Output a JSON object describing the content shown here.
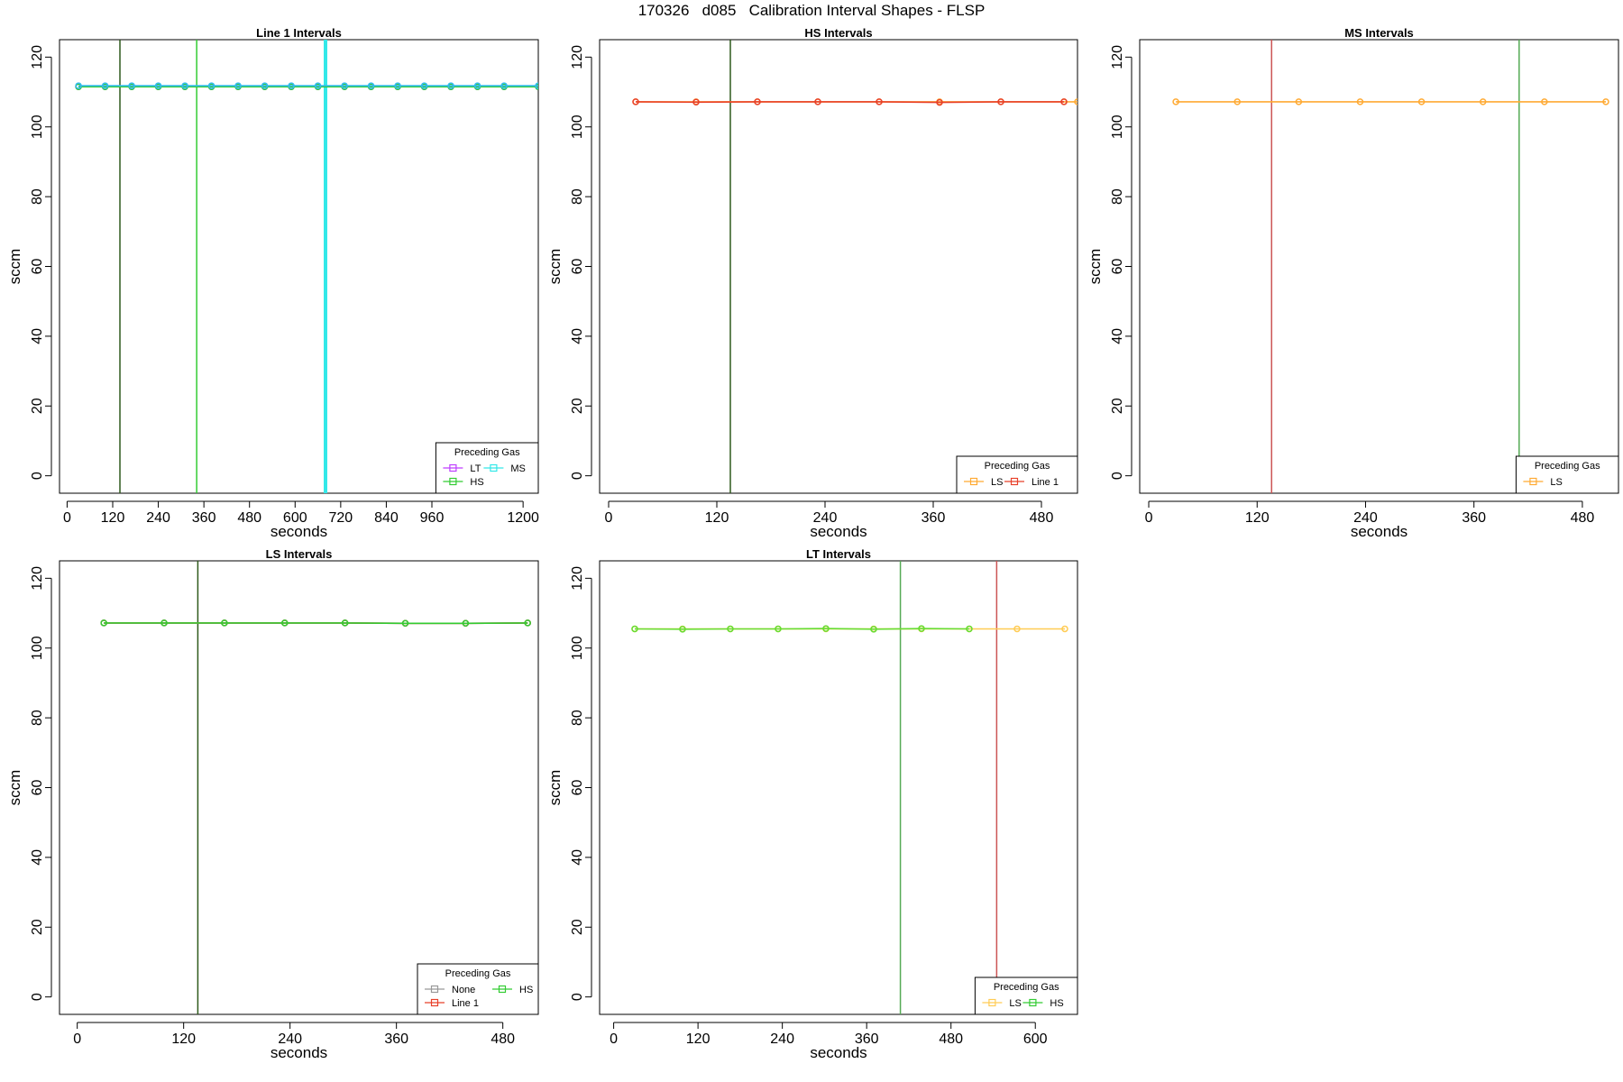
{
  "figure": {
    "title": "170326   d085   Calibration Interval Shapes - FLSP"
  },
  "chart_data": [
    {
      "type": "line",
      "title": "Line 1 Intervals",
      "xlabel": "seconds",
      "ylabel": "sccm",
      "xlim": [
        -20,
        1240
      ],
      "ylim": [
        -5,
        125
      ],
      "xticks": [
        0,
        120,
        240,
        360,
        480,
        600,
        720,
        840,
        960,
        1200
      ],
      "yticks": [
        0,
        20,
        40,
        60,
        80,
        100,
        120
      ],
      "grid": false,
      "legend": {
        "title": "Preceding Gas",
        "placement": "bottom-right",
        "entries": [
          {
            "label": "LT",
            "color": "#bf3fff"
          },
          {
            "label": "MS",
            "color": "#33e8e8"
          },
          {
            "label": "HS",
            "color": "#33cc33"
          }
        ]
      },
      "vlines": [
        {
          "x": 139,
          "color": "#2e5a1c",
          "width": 1.5
        },
        {
          "x": 341,
          "color": "#33cc33",
          "width": 1.5
        },
        {
          "x": 680,
          "color": "#33e8e8",
          "width": 4
        }
      ],
      "series": [
        {
          "name": "LT",
          "color": "#bf3fff",
          "marker": true,
          "x": [
            30,
            100,
            170,
            240,
            310,
            380,
            450,
            520,
            590,
            660,
            730,
            800,
            870,
            940,
            1010,
            1080,
            1150,
            1240
          ],
          "y": [
            111.5,
            111.5,
            111.5,
            111.5,
            111.5,
            111.5,
            111.5,
            111.5,
            111.5,
            111.5,
            111.5,
            111.5,
            111.5,
            111.5,
            111.5,
            111.5,
            111.5,
            111.5
          ]
        },
        {
          "name": "HS",
          "color": "#33cc33",
          "marker": true,
          "x": [
            30,
            100,
            170,
            240,
            310,
            380,
            450,
            520,
            590,
            660,
            730,
            800,
            870,
            940,
            1010,
            1080,
            1150,
            1240
          ],
          "y": [
            111.5,
            111.5,
            111.5,
            111.5,
            111.5,
            111.5,
            111.5,
            111.5,
            111.5,
            111.5,
            111.5,
            111.5,
            111.5,
            111.5,
            111.5,
            111.5,
            111.5,
            111.5
          ]
        },
        {
          "name": "MS",
          "color": "#33bbee",
          "marker": true,
          "x": [
            30,
            100,
            170,
            240,
            310,
            380,
            450,
            520,
            590,
            660,
            730,
            800,
            870,
            940,
            1010,
            1080,
            1150,
            1240
          ],
          "y": [
            111.8,
            111.8,
            111.8,
            111.8,
            111.8,
            111.8,
            111.8,
            111.8,
            111.8,
            111.8,
            111.8,
            111.8,
            111.8,
            111.8,
            111.8,
            111.8,
            111.8,
            111.8
          ]
        }
      ]
    },
    {
      "type": "line",
      "title": "HS Intervals",
      "xlabel": "seconds",
      "ylabel": "sccm",
      "xlim": [
        -10,
        520
      ],
      "ylim": [
        -5,
        125
      ],
      "xticks": [
        0,
        120,
        240,
        360,
        480
      ],
      "yticks": [
        0,
        20,
        40,
        60,
        80,
        100,
        120
      ],
      "grid": false,
      "legend": {
        "title": "Preceding Gas",
        "placement": "bottom-right",
        "entries": [
          {
            "label": "LS",
            "color": "#ffaa33"
          },
          {
            "label": "Line 1",
            "color": "#e8402a"
          }
        ]
      },
      "vlines": [
        {
          "x": 135,
          "color": "#2e5a1c",
          "width": 1.5
        }
      ],
      "series": [
        {
          "name": "LS",
          "color": "#ffaa33",
          "marker": true,
          "x": [
            30,
            97,
            165,
            232,
            300,
            367,
            435,
            505,
            520
          ],
          "y": [
            107.2,
            107.2,
            107.2,
            107.2,
            107.2,
            107.2,
            107.2,
            107.2,
            107.2
          ]
        },
        {
          "name": "Line 1",
          "color": "#e8402a",
          "marker": true,
          "x": [
            30,
            97,
            165,
            232,
            300,
            367,
            435,
            505
          ],
          "y": [
            107.2,
            107.1,
            107.2,
            107.2,
            107.2,
            107.0,
            107.2,
            107.2
          ]
        }
      ]
    },
    {
      "type": "line",
      "title": "MS Intervals",
      "xlabel": "seconds",
      "ylabel": "sccm",
      "xlim": [
        -10,
        520
      ],
      "ylim": [
        -5,
        125
      ],
      "xticks": [
        0,
        120,
        240,
        360,
        480
      ],
      "yticks": [
        0,
        20,
        40,
        60,
        80,
        100,
        120
      ],
      "grid": false,
      "legend": {
        "title": "Preceding Gas",
        "placement": "bottom-right",
        "entries": [
          {
            "label": "LS",
            "color": "#ffaa33"
          }
        ]
      },
      "vlines": [
        {
          "x": 136,
          "color": "#cc5555",
          "width": 1.5
        },
        {
          "x": 410,
          "color": "#55aa55",
          "width": 1.5
        }
      ],
      "series": [
        {
          "name": "LS",
          "color": "#ffaa33",
          "marker": true,
          "x": [
            30,
            98,
            166,
            234,
            302,
            370,
            438,
            506
          ],
          "y": [
            107.2,
            107.2,
            107.2,
            107.2,
            107.2,
            107.2,
            107.2,
            107.2
          ]
        }
      ]
    },
    {
      "type": "line",
      "title": "LS Intervals",
      "xlabel": "seconds",
      "ylabel": "sccm",
      "xlim": [
        -20,
        520
      ],
      "ylim": [
        -5,
        125
      ],
      "xticks": [
        0,
        120,
        240,
        360,
        480
      ],
      "yticks": [
        0,
        20,
        40,
        60,
        80,
        100,
        120
      ],
      "grid": false,
      "legend": {
        "title": "Preceding Gas",
        "placement": "bottom-right",
        "entries": [
          {
            "label": "None",
            "color": "#999999"
          },
          {
            "label": "HS",
            "color": "#33cc33"
          },
          {
            "label": "Line 1",
            "color": "#e8402a"
          }
        ]
      },
      "vlines": [
        {
          "x": 136,
          "color": "#2e5a1c",
          "width": 1.5
        }
      ],
      "series": [
        {
          "name": "None",
          "color": "#999999",
          "marker": true,
          "x": [
            30,
            98,
            166,
            234,
            302,
            370,
            438,
            508
          ],
          "y": [
            107.2,
            107.2,
            107.2,
            107.2,
            107.2,
            107.1,
            107.1,
            107.2
          ]
        },
        {
          "name": "Line 1",
          "color": "#e8402a",
          "marker": true,
          "x": [
            30,
            98,
            166,
            234,
            302,
            370,
            438,
            508
          ],
          "y": [
            107.2,
            107.2,
            107.2,
            107.2,
            107.2,
            107.1,
            107.1,
            107.2
          ]
        },
        {
          "name": "HS",
          "color": "#33cc33",
          "marker": true,
          "x": [
            30,
            98,
            166,
            234,
            302,
            370,
            438,
            508
          ],
          "y": [
            107.2,
            107.2,
            107.2,
            107.2,
            107.2,
            107.1,
            107.1,
            107.2
          ]
        }
      ]
    },
    {
      "type": "line",
      "title": "LT Intervals",
      "xlabel": "seconds",
      "ylabel": "sccm",
      "xlim": [
        -20,
        660
      ],
      "ylim": [
        -5,
        125
      ],
      "xticks": [
        0,
        120,
        240,
        360,
        480,
        600
      ],
      "yticks": [
        0,
        20,
        40,
        60,
        80,
        100,
        120
      ],
      "grid": false,
      "legend": {
        "title": "Preceding Gas",
        "placement": "bottom-right",
        "entries": [
          {
            "label": "LS",
            "color": "#ffcc55"
          },
          {
            "label": "HS",
            "color": "#33cc33"
          }
        ]
      },
      "vlines": [
        {
          "x": 408,
          "color": "#55aa55",
          "width": 1.5
        },
        {
          "x": 545,
          "color": "#cc5555",
          "width": 1.5
        }
      ],
      "series": [
        {
          "name": "LS",
          "color": "#ffcc55",
          "marker": true,
          "x": [
            30,
            98,
            166,
            234,
            302,
            370,
            438,
            506,
            574,
            642
          ],
          "y": [
            105.5,
            105.5,
            105.5,
            105.5,
            105.5,
            105.5,
            105.5,
            105.5,
            105.5,
            105.5
          ]
        },
        {
          "name": "HS",
          "color": "#66dd33",
          "marker": true,
          "x": [
            30,
            98,
            166,
            234,
            302,
            370,
            438,
            506
          ],
          "y": [
            105.5,
            105.4,
            105.5,
            105.5,
            105.6,
            105.4,
            105.6,
            105.5
          ]
        }
      ]
    }
  ]
}
